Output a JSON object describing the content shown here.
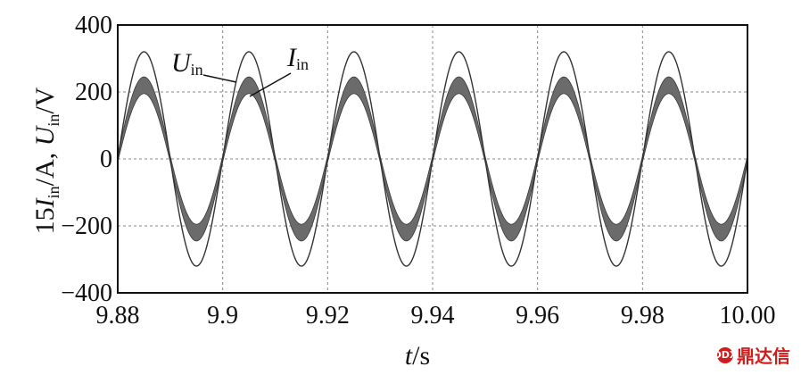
{
  "chart_data": {
    "type": "line",
    "xlabel_italic": "t",
    "xlabel_unit": "/s",
    "ylabel": "15I_in/A, U_in/V",
    "ylim": [
      -400,
      400
    ],
    "xlim": [
      9.88,
      10.0
    ],
    "yticks": [
      -400,
      -200,
      0,
      200,
      400
    ],
    "xticks": [
      "9.88",
      "9.9",
      "9.92",
      "9.94",
      "9.96",
      "9.98",
      "10.00"
    ],
    "ytick_labels": [
      "400",
      "200",
      "0",
      "−200",
      "−400"
    ],
    "grid": true,
    "frequency_hz": 50,
    "series": [
      {
        "name": "U_in",
        "amplitude": 320,
        "shape": "sine",
        "color": "#333333"
      },
      {
        "name": "I_in",
        "amplitude": 220,
        "ripple": 25,
        "shape": "sine",
        "color": "#555555"
      }
    ],
    "annotations": [
      {
        "main": "U",
        "sub": "in",
        "target": "U_in"
      },
      {
        "main": "I",
        "sub": "in",
        "target": "I_in"
      }
    ]
  },
  "watermark": {
    "icon_text": "DDX",
    "text": "鼎达信"
  }
}
